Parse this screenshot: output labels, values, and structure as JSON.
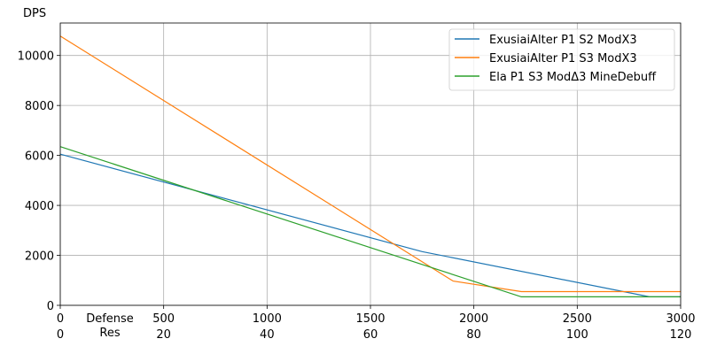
{
  "chart_data": {
    "type": "line",
    "title": "",
    "ylabel": "DPS",
    "xlabel_lines": [
      "Defense",
      "Res"
    ],
    "x_defense": {
      "ticks": [
        0,
        500,
        1000,
        1500,
        2000,
        2500,
        3000
      ],
      "tick_labels": [
        "0",
        "500",
        "1000",
        "1500",
        "2000",
        "2500",
        "3000"
      ],
      "range": [
        0,
        3000
      ]
    },
    "x_res": {
      "tick_labels": [
        "0",
        "20",
        "40",
        "60",
        "80",
        "100",
        "120"
      ]
    },
    "y": {
      "ticks": [
        0,
        2000,
        4000,
        6000,
        8000,
        10000
      ],
      "tick_labels": [
        "0",
        "2000",
        "4000",
        "6000",
        "8000",
        "10000"
      ],
      "range": [
        0,
        11300
      ]
    },
    "grid": true,
    "legend_position": "top-right",
    "series": [
      {
        "name": "ExusiaiAlter P1 S2 ModX3",
        "color": "#1f77b4",
        "points": [
          [
            0,
            6050
          ],
          [
            1750,
            2150
          ],
          [
            2850,
            340
          ],
          [
            3000,
            340
          ]
        ]
      },
      {
        "name": "ExusiaiAlter P1 S3 ModX3",
        "color": "#ff7f0e",
        "points": [
          [
            0,
            10780
          ],
          [
            1900,
            970
          ],
          [
            2230,
            550
          ],
          [
            3000,
            550
          ]
        ]
      },
      {
        "name": "Ela P1 S3 ModΔ3 MineDebuff",
        "color": "#2ca02c",
        "points": [
          [
            0,
            6350
          ],
          [
            2230,
            340
          ],
          [
            3000,
            340
          ]
        ]
      }
    ]
  }
}
